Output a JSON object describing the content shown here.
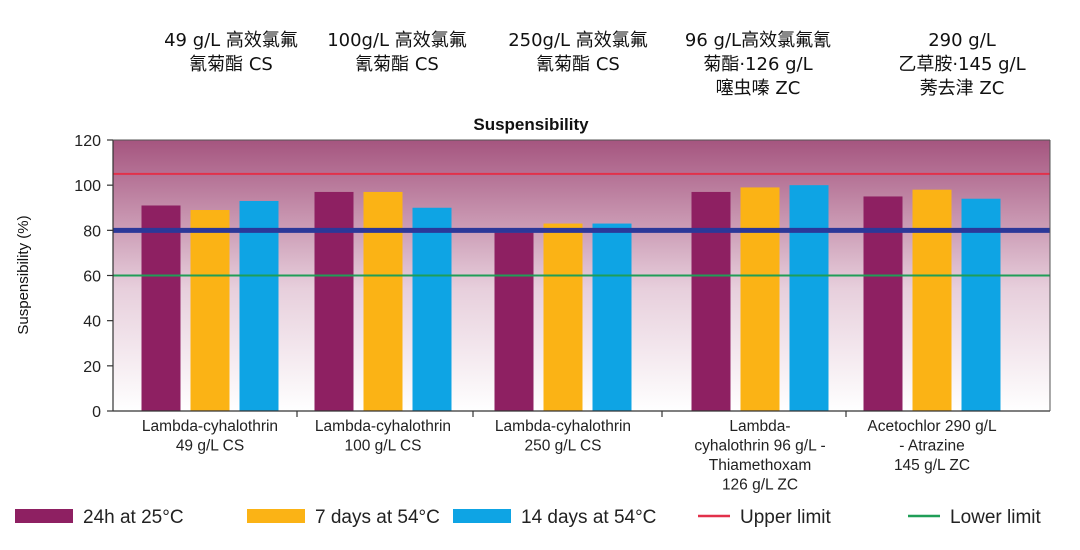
{
  "chart_data": {
    "type": "bar",
    "title": "Suspensibility",
    "ylabel": "Suspensibility (%)",
    "ylim": [
      0,
      120
    ],
    "yticks": [
      0,
      20,
      40,
      60,
      80,
      100,
      120
    ],
    "categories": [
      [
        "Lambda-cyhalothrin",
        "49 g/L CS"
      ],
      [
        "Lambda-cyhalothrin",
        "100 g/L CS"
      ],
      [
        "Lambda-cyhalothrin",
        "250 g/L CS"
      ],
      [
        "Lambda-",
        "cyhalothrin 96 g/L -",
        "Thiamethoxam",
        "126 g/L ZC"
      ],
      [
        "Acetochlor 290 g/L",
        "- Atrazine",
        "145 g/L ZC"
      ]
    ],
    "categories_zh": [
      [
        "49 g/L 高效氯氟",
        "氰菊酯 CS"
      ],
      [
        "100g/L 高效氯氟",
        "氰菊酯 CS"
      ],
      [
        "250g/L 高效氯氟",
        "氰菊酯 CS"
      ],
      [
        "96 g/L高效氯氟氰",
        "菊酯·126 g/L",
        "噻虫嗪 ZC"
      ],
      [
        "290 g/L",
        "乙草胺·145 g/L",
        "莠去津 ZC"
      ]
    ],
    "series": [
      {
        "name": "24h at 25°C",
        "color": "#8e2062",
        "values": [
          91,
          97,
          79,
          97,
          95
        ]
      },
      {
        "name": "7 days at 54°C",
        "color": "#fbb315",
        "values": [
          89,
          97,
          83,
          99,
          98
        ]
      },
      {
        "name": "14 days at 54°C",
        "color": "#0ea4e4",
        "values": [
          93,
          90,
          83,
          100,
          94
        ]
      }
    ],
    "reference_lines": [
      {
        "name": "Upper limit",
        "value": 105,
        "color": "#e2314a"
      },
      {
        "name": "",
        "value": 80,
        "color": "#2b3899"
      },
      {
        "name": "Lower limit",
        "value": 60,
        "color": "#1f9e57"
      }
    ],
    "legend_position": "bottom",
    "grid": false,
    "background": {
      "top_color": "#a5557f",
      "bottom_color": "#ffffff"
    }
  }
}
